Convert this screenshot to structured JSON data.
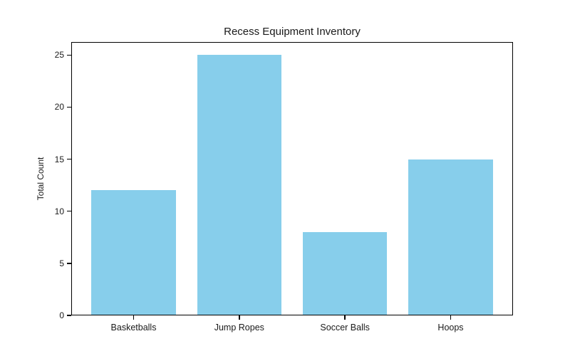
{
  "figure": {
    "background": "#ffffff"
  },
  "chart_data": {
    "type": "bar",
    "title": "Recess Equipment Inventory",
    "categories": [
      "Basketballs",
      "Jump Ropes",
      "Soccer Balls",
      "Hoops"
    ],
    "values": [
      12,
      25,
      8,
      15
    ],
    "xlabel": "",
    "ylabel": "Total Count",
    "yticks": [
      0,
      5,
      10,
      15,
      20,
      25
    ],
    "ylim": [
      0,
      26.25
    ],
    "xlim": [
      -0.59,
      3.59
    ],
    "bar_width": 0.8,
    "bar_color": "#87ceeb",
    "axis_color": "#000000",
    "text_color": "#1a1a1a",
    "grid": false,
    "legend": null
  }
}
